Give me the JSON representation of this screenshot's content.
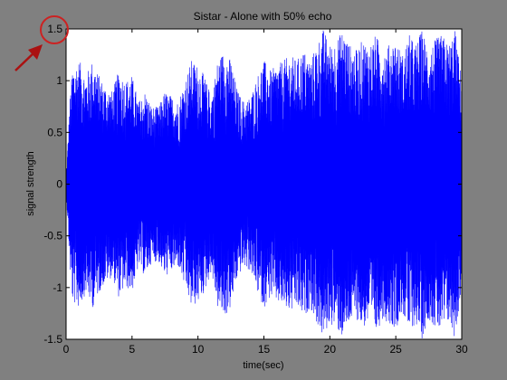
{
  "figure": {
    "background": "#808080",
    "axes_background": "#ffffff"
  },
  "annotation": {
    "circle_color": "#cc2222",
    "arrow_color": "#aa1111",
    "highlighted_tick": "1.5"
  },
  "chart_data": {
    "type": "line",
    "title": "Sistar - Alone with 50% echo",
    "xlabel": "time(sec)",
    "ylabel": "signal strength",
    "xlim": [
      0,
      30
    ],
    "ylim": [
      -1.5,
      1.5
    ],
    "xticks": [
      0,
      5,
      10,
      15,
      20,
      25,
      30
    ],
    "xtick_labels": [
      "0",
      "5",
      "10",
      "15",
      "20",
      "25",
      "30"
    ],
    "yticks": [
      1.5,
      1,
      0.5,
      0,
      -0.5,
      -1,
      -1.5
    ],
    "ytick_labels": [
      "1.5",
      "1",
      "0.5",
      "0",
      "-0.5",
      "-1",
      "-1.5"
    ],
    "grid": false,
    "series": [
      {
        "color": "#0000ff",
        "envelope": {
          "t": [
            0,
            0.3,
            0.5,
            1,
            1.5,
            2,
            2.5,
            3,
            3.5,
            4,
            4.5,
            5,
            5.5,
            6,
            6.5,
            7,
            7.5,
            8,
            8.5,
            9,
            9.5,
            10,
            10.5,
            11,
            11.5,
            12,
            12.5,
            13,
            13.5,
            14,
            14.5,
            15,
            15.5,
            16,
            16.5,
            17,
            17.5,
            18,
            18.5,
            19,
            19.5,
            20,
            20.5,
            21,
            21.5,
            22,
            22.5,
            23,
            23.5,
            24,
            24.5,
            25,
            25.5,
            26,
            26.5,
            27,
            27.5,
            28,
            28.5,
            29,
            29.5,
            30
          ],
          "amplitude": [
            0.05,
            0.85,
            1.15,
            1.2,
            1.05,
            1.2,
            1.05,
            0.95,
            0.9,
            1.1,
            1.0,
            1.05,
            0.8,
            0.9,
            0.75,
            0.75,
            0.9,
            0.85,
            0.8,
            1.0,
            1.2,
            1.15,
            1.05,
            0.85,
            1.2,
            1.3,
            1.2,
            0.9,
            0.8,
            0.85,
            1.05,
            1.2,
            1.1,
            1.15,
            1.2,
            1.25,
            1.2,
            1.3,
            1.2,
            1.35,
            1.5,
            1.35,
            1.4,
            1.5,
            1.35,
            1.3,
            1.4,
            1.35,
            1.45,
            1.3,
            1.35,
            1.4,
            1.25,
            1.45,
            1.35,
            1.5,
            1.3,
            1.4,
            1.45,
            1.35,
            1.5,
            1.0
          ]
        }
      }
    ]
  }
}
